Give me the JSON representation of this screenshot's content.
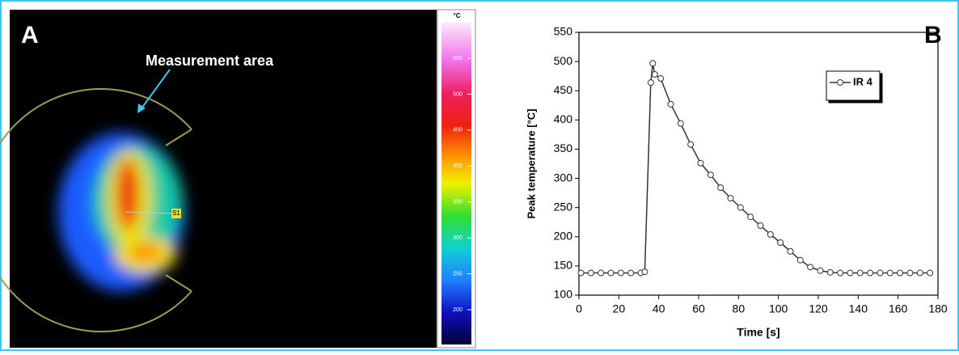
{
  "panel_a": {
    "label": "A",
    "annotation": "Measurement area",
    "marker_label": "S1",
    "colorbar": {
      "unit": "°C",
      "ticks": [
        200,
        250,
        300,
        350,
        400,
        450,
        500,
        550
      ]
    }
  },
  "chart_data": {
    "type": "line",
    "panel_label": "B",
    "x_label": "Time [s]",
    "y_label": "Peak temperature [°C]",
    "x": [
      1,
      6,
      11,
      16,
      21,
      26,
      31,
      33,
      36,
      37,
      38,
      41,
      46,
      51,
      56,
      61,
      66,
      71,
      76,
      81,
      86,
      91,
      96,
      101,
      106,
      111,
      116,
      121,
      126,
      131,
      136,
      141,
      146,
      151,
      156,
      161,
      166,
      171,
      176
    ],
    "series": [
      {
        "name": "IR 4",
        "color": "#333333",
        "values": [
          138,
          138,
          138,
          138,
          138,
          138,
          138,
          140,
          464,
          497,
          478,
          471,
          427,
          394,
          358,
          326,
          306,
          284,
          266,
          250,
          234,
          219,
          204,
          190,
          175,
          160,
          148,
          142,
          139,
          138,
          138,
          138,
          138,
          138,
          138,
          138,
          138,
          138,
          138
        ]
      }
    ],
    "xlim": [
      0,
      180
    ],
    "xticks": [
      0,
      20,
      40,
      60,
      80,
      100,
      120,
      140,
      160,
      180
    ],
    "ylim": [
      100,
      550
    ],
    "yticks": [
      100,
      150,
      200,
      250,
      300,
      350,
      400,
      450,
      500,
      550
    ],
    "legend": "upper right",
    "grid": false
  }
}
